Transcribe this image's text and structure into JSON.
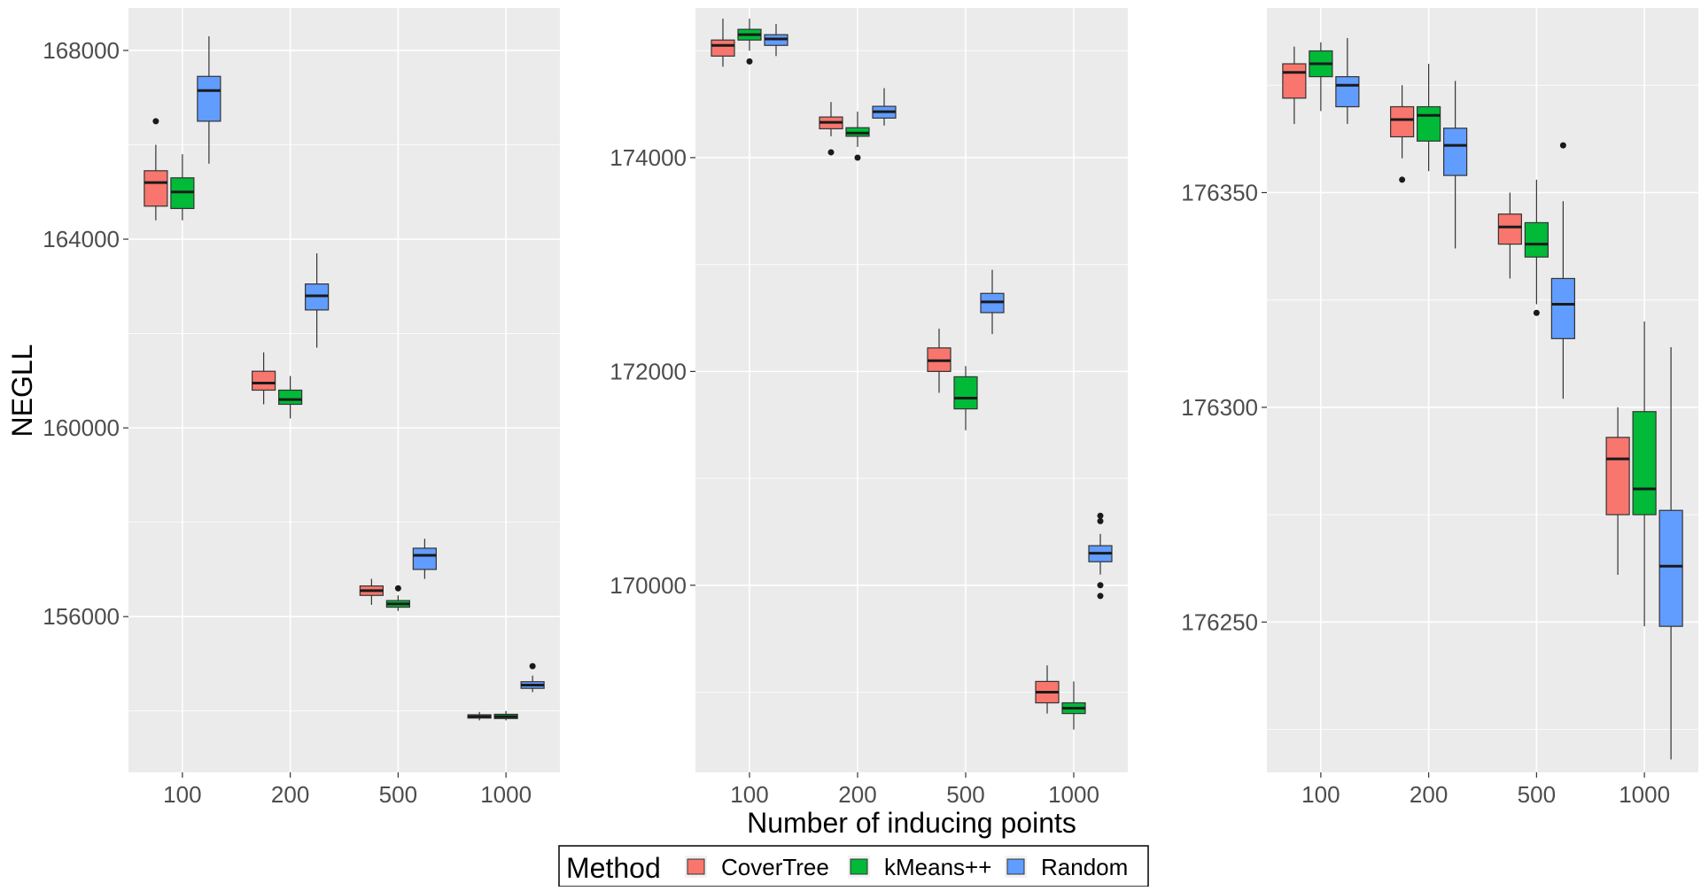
{
  "chart_data": {
    "type": "box",
    "ylabel": "NEGLL",
    "xlabel": "Number of inducing points",
    "categories": [
      "100",
      "200",
      "500",
      "1000"
    ],
    "legend": {
      "title": "Method",
      "placement": "bottom",
      "entries": [
        {
          "name": "CoverTree",
          "color": "#F8766D"
        },
        {
          "name": "kMeans++",
          "color": "#00BA38"
        },
        {
          "name": "Random",
          "color": "#619CFF"
        }
      ]
    },
    "panels": [
      {
        "ylim": [
          152700,
          168900
        ],
        "yticks": [
          156000,
          160000,
          164000,
          168000
        ],
        "ytick_labels": [
          "156000",
          "160000",
          "164000",
          "168000"
        ],
        "series": [
          {
            "name": "CoverTree",
            "boxes": [
              {
                "category": "100",
                "min": 164400,
                "q1": 164700,
                "median": 165200,
                "q3": 165450,
                "max": 166000,
                "outliers": [
                  166500
                ]
              },
              {
                "category": "200",
                "min": 160500,
                "q1": 160800,
                "median": 160950,
                "q3": 161200,
                "max": 161600,
                "outliers": []
              },
              {
                "category": "500",
                "min": 156250,
                "q1": 156450,
                "median": 156550,
                "q3": 156650,
                "max": 156800,
                "outliers": []
              },
              {
                "category": "1000",
                "min": 153800,
                "q1": 153850,
                "median": 153880,
                "q3": 153920,
                "max": 153980,
                "outliers": []
              }
            ]
          },
          {
            "name": "kMeans++",
            "boxes": [
              {
                "category": "100",
                "min": 164400,
                "q1": 164650,
                "median": 165000,
                "q3": 165300,
                "max": 165800,
                "outliers": []
              },
              {
                "category": "200",
                "min": 160200,
                "q1": 160500,
                "median": 160600,
                "q3": 160800,
                "max": 161100,
                "outliers": []
              },
              {
                "category": "500",
                "min": 156120,
                "q1": 156200,
                "median": 156270,
                "q3": 156340,
                "max": 156450,
                "outliers": [
                  156600
                ]
              },
              {
                "category": "1000",
                "min": 153800,
                "q1": 153840,
                "median": 153880,
                "q3": 153930,
                "max": 154000,
                "outliers": []
              }
            ]
          },
          {
            "name": "Random",
            "boxes": [
              {
                "category": "100",
                "min": 165600,
                "q1": 166500,
                "median": 167150,
                "q3": 167450,
                "max": 168300,
                "outliers": []
              },
              {
                "category": "200",
                "min": 161700,
                "q1": 162500,
                "median": 162800,
                "q3": 163050,
                "max": 163700,
                "outliers": []
              },
              {
                "category": "500",
                "min": 156800,
                "q1": 157000,
                "median": 157300,
                "q3": 157450,
                "max": 157650,
                "outliers": []
              },
              {
                "category": "1000",
                "min": 154400,
                "q1": 154480,
                "median": 154550,
                "q3": 154620,
                "max": 154750,
                "outliers": [
                  154950
                ]
              }
            ]
          }
        ]
      },
      {
        "ylim": [
          168250,
          175400
        ],
        "yticks": [
          170000,
          172000,
          174000
        ],
        "ytick_labels": [
          "170000",
          "172000",
          "174000"
        ],
        "series": [
          {
            "name": "CoverTree",
            "boxes": [
              {
                "category": "100",
                "min": 174850,
                "q1": 174950,
                "median": 175050,
                "q3": 175100,
                "max": 175300,
                "outliers": []
              },
              {
                "category": "200",
                "min": 174200,
                "q1": 174270,
                "median": 174330,
                "q3": 174380,
                "max": 174520,
                "outliers": [
                  174050
                ]
              },
              {
                "category": "500",
                "min": 171800,
                "q1": 172000,
                "median": 172100,
                "q3": 172220,
                "max": 172400,
                "outliers": []
              },
              {
                "category": "1000",
                "min": 168800,
                "q1": 168900,
                "median": 169000,
                "q3": 169100,
                "max": 169250,
                "outliers": []
              }
            ]
          },
          {
            "name": "kMeans++",
            "boxes": [
              {
                "category": "100",
                "min": 175000,
                "q1": 175100,
                "median": 175150,
                "q3": 175200,
                "max": 175300,
                "outliers": [
                  174900
                ]
              },
              {
                "category": "200",
                "min": 174100,
                "q1": 174200,
                "median": 174230,
                "q3": 174280,
                "max": 174430,
                "outliers": [
                  174000
                ]
              },
              {
                "category": "500",
                "min": 171450,
                "q1": 171650,
                "median": 171750,
                "q3": 171950,
                "max": 172050,
                "outliers": []
              },
              {
                "category": "1000",
                "min": 168650,
                "q1": 168800,
                "median": 168850,
                "q3": 168900,
                "max": 169100,
                "outliers": []
              }
            ]
          },
          {
            "name": "Random",
            "boxes": [
              {
                "category": "100",
                "min": 174950,
                "q1": 175050,
                "median": 175110,
                "q3": 175150,
                "max": 175250,
                "outliers": []
              },
              {
                "category": "200",
                "min": 174300,
                "q1": 174370,
                "median": 174430,
                "q3": 174480,
                "max": 174650,
                "outliers": []
              },
              {
                "category": "500",
                "min": 172350,
                "q1": 172550,
                "median": 172650,
                "q3": 172730,
                "max": 172950,
                "outliers": []
              },
              {
                "category": "1000",
                "min": 170100,
                "q1": 170220,
                "median": 170300,
                "q3": 170370,
                "max": 170480,
                "outliers": [
                  169900,
                  170000,
                  170600,
                  170650
                ]
              }
            ]
          }
        ]
      },
      {
        "ylim": [
          176215,
          176393
        ],
        "yticks": [
          176250,
          176300,
          176350
        ],
        "ytick_labels": [
          "176250",
          "176300",
          "176350"
        ],
        "series": [
          {
            "name": "CoverTree",
            "boxes": [
              {
                "category": "100",
                "min": 176366,
                "q1": 176372,
                "median": 176378,
                "q3": 176380,
                "max": 176384,
                "outliers": []
              },
              {
                "category": "200",
                "min": 176358,
                "q1": 176363,
                "median": 176367,
                "q3": 176370,
                "max": 176375,
                "outliers": [
                  176353
                ]
              },
              {
                "category": "500",
                "min": 176330,
                "q1": 176338,
                "median": 176342,
                "q3": 176345,
                "max": 176350,
                "outliers": []
              },
              {
                "category": "1000",
                "min": 176261,
                "q1": 176275,
                "median": 176288,
                "q3": 176293,
                "max": 176300,
                "outliers": []
              }
            ]
          },
          {
            "name": "kMeans++",
            "boxes": [
              {
                "category": "100",
                "min": 176369,
                "q1": 176377,
                "median": 176380,
                "q3": 176383,
                "max": 176385,
                "outliers": []
              },
              {
                "category": "200",
                "min": 176355,
                "q1": 176362,
                "median": 176368,
                "q3": 176370,
                "max": 176380,
                "outliers": []
              },
              {
                "category": "500",
                "min": 176324,
                "q1": 176335,
                "median": 176338,
                "q3": 176343,
                "max": 176353,
                "outliers": [
                  176322
                ]
              },
              {
                "category": "1000",
                "min": 176249,
                "q1": 176275,
                "median": 176281,
                "q3": 176299,
                "max": 176320,
                "outliers": []
              }
            ]
          },
          {
            "name": "Random",
            "boxes": [
              {
                "category": "100",
                "min": 176366,
                "q1": 176370,
                "median": 176375,
                "q3": 176377,
                "max": 176386,
                "outliers": []
              },
              {
                "category": "200",
                "min": 176337,
                "q1": 176354,
                "median": 176361,
                "q3": 176365,
                "max": 176376,
                "outliers": []
              },
              {
                "category": "500",
                "min": 176302,
                "q1": 176316,
                "median": 176324,
                "q3": 176330,
                "max": 176348,
                "outliers": [
                  176361
                ]
              },
              {
                "category": "1000",
                "min": 176218,
                "q1": 176249,
                "median": 176263,
                "q3": 176276,
                "max": 176314,
                "outliers": []
              }
            ]
          }
        ]
      }
    ]
  }
}
